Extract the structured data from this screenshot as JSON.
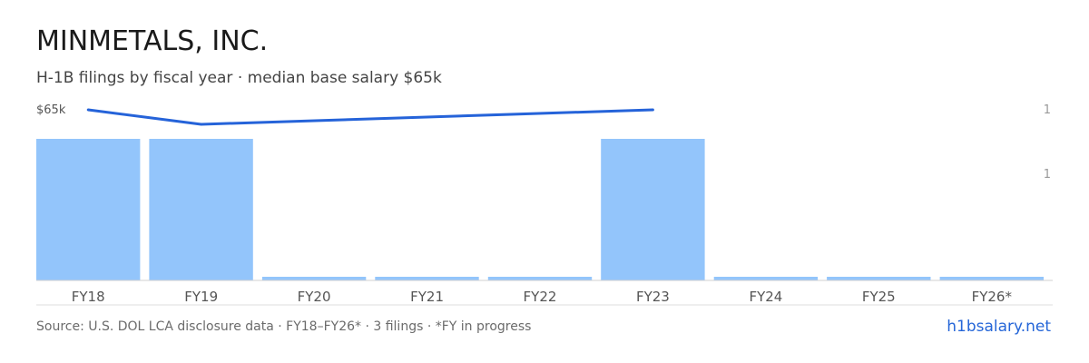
{
  "header": {
    "title": "MINMETALS, INC.",
    "subtitle": "H-1B filings by fiscal year · median base salary $65k"
  },
  "footer": {
    "source": "Source: U.S. DOL LCA disclosure data · FY18–FY26* · 3 filings · *FY in progress",
    "brand": "h1bsalary.net"
  },
  "colors": {
    "bar": "#93c5fb",
    "line": "#2563d9",
    "axis": "#d0d0d0",
    "tick_text": "#555555",
    "right_tick_text": "#999999"
  },
  "chart_data": {
    "type": "bar",
    "categories": [
      "FY18",
      "FY19",
      "FY20",
      "FY21",
      "FY22",
      "FY23",
      "FY24",
      "FY25",
      "FY26*"
    ],
    "series": [
      {
        "type": "bar",
        "values": [
          1,
          1,
          0,
          0,
          0,
          1,
          0,
          0,
          0
        ]
      },
      {
        "type": "line",
        "x": [
          "FY18",
          "FY19",
          "FY23"
        ],
        "values": [
          65,
          64,
          65
        ]
      }
    ],
    "left_tick_label": "$65k",
    "right_tick_labels": [
      "1",
      "1"
    ],
    "ylim": [
      0,
      1
    ]
  }
}
